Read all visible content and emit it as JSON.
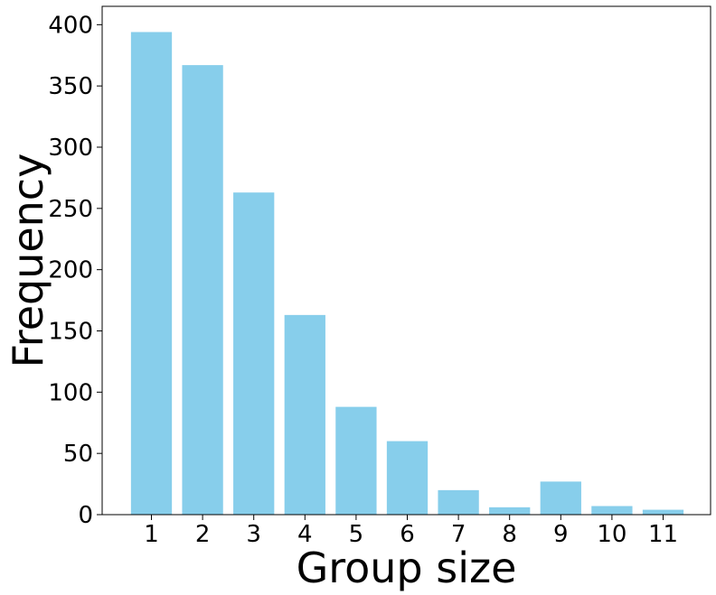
{
  "chart_data": {
    "type": "bar",
    "title": "",
    "xlabel": "Group size",
    "ylabel": "Frequency",
    "categories": [
      "1",
      "2",
      "3",
      "4",
      "5",
      "6",
      "7",
      "8",
      "9",
      "10",
      "11"
    ],
    "values": [
      394,
      367,
      263,
      163,
      88,
      60,
      20,
      6,
      27,
      7,
      4
    ],
    "ylim": [
      0,
      415
    ],
    "yticks": [
      0,
      50,
      100,
      150,
      200,
      250,
      300,
      350,
      400
    ],
    "grid": false,
    "legend": "none",
    "bar_color": "#87CEEB"
  }
}
